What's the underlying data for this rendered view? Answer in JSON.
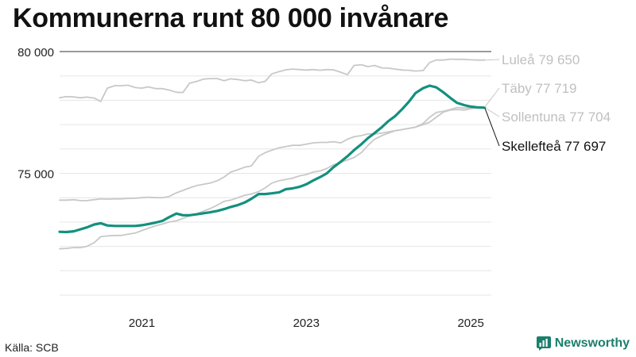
{
  "title": "Kommunerna runt 80 000 invånare",
  "source": "Källa: SCB",
  "brand": "Newsworthy",
  "colors": {
    "highlight": "#13907e",
    "other": "#c8c8c8",
    "other_label": "#c0c0c0",
    "brand": "#1a7f6c"
  },
  "chart_data": {
    "type": "line",
    "title": "Kommunerna runt 80 000 invånare",
    "xlabel": "",
    "ylabel": "",
    "xlim": [
      2020.0,
      2025.25
    ],
    "ylim": [
      70000,
      80000
    ],
    "yticks": [
      75000,
      80000
    ],
    "ytick_labels": [
      "75 000",
      "80 000"
    ],
    "xticks": [
      2021,
      2023,
      2025
    ],
    "xtick_labels": [
      "2021",
      "2023",
      "2025"
    ],
    "grid": "horizontal",
    "series": [
      {
        "name": "Luleå",
        "label": "Luleå 79 650",
        "highlight": false,
        "x": [
          2020.0,
          2020.08,
          2020.17,
          2020.25,
          2020.33,
          2020.42,
          2020.5,
          2020.58,
          2020.67,
          2020.75,
          2020.83,
          2020.92,
          2021.0,
          2021.08,
          2021.17,
          2021.25,
          2021.33,
          2021.42,
          2021.5,
          2021.58,
          2021.67,
          2021.75,
          2021.83,
          2021.92,
          2022.0,
          2022.08,
          2022.17,
          2022.25,
          2022.33,
          2022.42,
          2022.5,
          2022.58,
          2022.67,
          2022.75,
          2022.83,
          2022.92,
          2023.0,
          2023.08,
          2023.17,
          2023.25,
          2023.33,
          2023.42,
          2023.5,
          2023.58,
          2023.67,
          2023.75,
          2023.83,
          2023.92,
          2024.0,
          2024.08,
          2024.17,
          2024.25,
          2024.33,
          2024.42,
          2024.5,
          2024.58,
          2024.67,
          2024.75,
          2024.83,
          2024.92,
          2025.0,
          2025.08,
          2025.17
        ],
        "values": [
          78100,
          78150,
          78140,
          78100,
          78130,
          78090,
          77950,
          78500,
          78600,
          78600,
          78620,
          78520,
          78500,
          78550,
          78480,
          78480,
          78420,
          78330,
          78320,
          78700,
          78780,
          78870,
          78890,
          78890,
          78800,
          78880,
          78850,
          78800,
          78830,
          78720,
          78780,
          79080,
          79180,
          79250,
          79280,
          79260,
          79240,
          79260,
          79230,
          79260,
          79250,
          79150,
          79050,
          79430,
          79460,
          79380,
          79430,
          79330,
          79320,
          79280,
          79240,
          79230,
          79200,
          79220,
          79550,
          79650,
          79650,
          79690,
          79680,
          79680,
          79660,
          79650,
          79650
        ]
      },
      {
        "name": "Täby",
        "label": "Täby 77 719",
        "highlight": false,
        "x": [
          2020.0,
          2020.08,
          2020.17,
          2020.25,
          2020.33,
          2020.42,
          2020.5,
          2020.58,
          2020.67,
          2020.75,
          2020.83,
          2020.92,
          2021.0,
          2021.08,
          2021.17,
          2021.25,
          2021.33,
          2021.42,
          2021.5,
          2021.58,
          2021.67,
          2021.75,
          2021.83,
          2021.92,
          2022.0,
          2022.08,
          2022.17,
          2022.25,
          2022.33,
          2022.42,
          2022.5,
          2022.58,
          2022.67,
          2022.75,
          2022.83,
          2022.92,
          2023.0,
          2023.08,
          2023.17,
          2023.25,
          2023.33,
          2023.42,
          2023.5,
          2023.58,
          2023.67,
          2023.75,
          2023.83,
          2023.92,
          2024.0,
          2024.08,
          2024.17,
          2024.25,
          2024.33,
          2024.42,
          2024.5,
          2024.58,
          2024.67,
          2024.75,
          2024.83,
          2024.92,
          2025.0,
          2025.08,
          2025.17
        ],
        "values": [
          71900,
          71920,
          71950,
          71950,
          72000,
          72150,
          72400,
          72430,
          72450,
          72450,
          72500,
          72550,
          72650,
          72750,
          72850,
          72920,
          73000,
          73050,
          73150,
          73250,
          73350,
          73450,
          73550,
          73700,
          73850,
          73900,
          74000,
          74100,
          74150,
          74250,
          74400,
          74600,
          74700,
          74750,
          74800,
          74900,
          74950,
          75050,
          75100,
          75200,
          75350,
          75450,
          75550,
          75650,
          75850,
          76150,
          76400,
          76550,
          76650,
          76750,
          76800,
          76850,
          76900,
          77050,
          77300,
          77500,
          77550,
          77620,
          77700,
          77680,
          77690,
          77710,
          77719
        ]
      },
      {
        "name": "Sollentuna",
        "label": "Sollentuna 77 704",
        "highlight": false,
        "x": [
          2020.0,
          2020.08,
          2020.17,
          2020.25,
          2020.33,
          2020.42,
          2020.5,
          2020.58,
          2020.67,
          2020.75,
          2020.83,
          2020.92,
          2021.0,
          2021.08,
          2021.17,
          2021.25,
          2021.33,
          2021.42,
          2021.5,
          2021.58,
          2021.67,
          2021.75,
          2021.83,
          2021.92,
          2022.0,
          2022.08,
          2022.17,
          2022.25,
          2022.33,
          2022.42,
          2022.5,
          2022.58,
          2022.67,
          2022.75,
          2022.83,
          2022.92,
          2023.0,
          2023.08,
          2023.17,
          2023.25,
          2023.33,
          2023.42,
          2023.5,
          2023.58,
          2023.67,
          2023.75,
          2023.83,
          2023.92,
          2024.0,
          2024.08,
          2024.17,
          2024.25,
          2024.33,
          2024.42,
          2024.5,
          2024.58,
          2024.67,
          2024.75,
          2024.83,
          2024.92,
          2025.0,
          2025.08,
          2025.17
        ],
        "values": [
          73900,
          73900,
          73920,
          73880,
          73880,
          73920,
          73950,
          73940,
          73950,
          73950,
          73970,
          73980,
          74000,
          74020,
          74000,
          74000,
          74050,
          74200,
          74300,
          74400,
          74500,
          74550,
          74600,
          74700,
          74850,
          75050,
          75150,
          75250,
          75300,
          75700,
          75850,
          75950,
          76050,
          76100,
          76150,
          76150,
          76200,
          76250,
          76270,
          76270,
          76300,
          76250,
          76400,
          76500,
          76550,
          76620,
          76620,
          76650,
          76700,
          76750,
          76800,
          76850,
          76900,
          77000,
          77100,
          77300,
          77520,
          77600,
          77620,
          77600,
          77650,
          77690,
          77704
        ]
      },
      {
        "name": "Skellefteå",
        "label": "Skellefteå 77 697",
        "highlight": true,
        "x": [
          2020.0,
          2020.08,
          2020.17,
          2020.25,
          2020.33,
          2020.42,
          2020.5,
          2020.58,
          2020.67,
          2020.75,
          2020.83,
          2020.92,
          2021.0,
          2021.08,
          2021.17,
          2021.25,
          2021.33,
          2021.42,
          2021.5,
          2021.58,
          2021.67,
          2021.75,
          2021.83,
          2021.92,
          2022.0,
          2022.08,
          2022.17,
          2022.25,
          2022.33,
          2022.42,
          2022.5,
          2022.58,
          2022.67,
          2022.75,
          2022.83,
          2022.92,
          2023.0,
          2023.08,
          2023.17,
          2023.25,
          2023.33,
          2023.42,
          2023.5,
          2023.58,
          2023.67,
          2023.75,
          2023.83,
          2023.92,
          2024.0,
          2024.08,
          2024.17,
          2024.25,
          2024.33,
          2024.42,
          2024.5,
          2024.58,
          2024.67,
          2024.75,
          2024.83,
          2024.92,
          2025.0,
          2025.08,
          2025.17
        ],
        "values": [
          72600,
          72590,
          72620,
          72700,
          72780,
          72900,
          72950,
          72860,
          72840,
          72840,
          72840,
          72840,
          72870,
          72920,
          72980,
          73050,
          73200,
          73350,
          73280,
          73280,
          73320,
          73360,
          73400,
          73460,
          73530,
          73620,
          73700,
          73800,
          73950,
          74150,
          74150,
          74180,
          74220,
          74350,
          74380,
          74450,
          74550,
          74700,
          74850,
          75000,
          75250,
          75480,
          75700,
          75950,
          76200,
          76450,
          76650,
          76900,
          77150,
          77350,
          77650,
          77950,
          78300,
          78500,
          78600,
          78530,
          78320,
          78100,
          77900,
          77800,
          77740,
          77710,
          77697
        ]
      }
    ]
  }
}
